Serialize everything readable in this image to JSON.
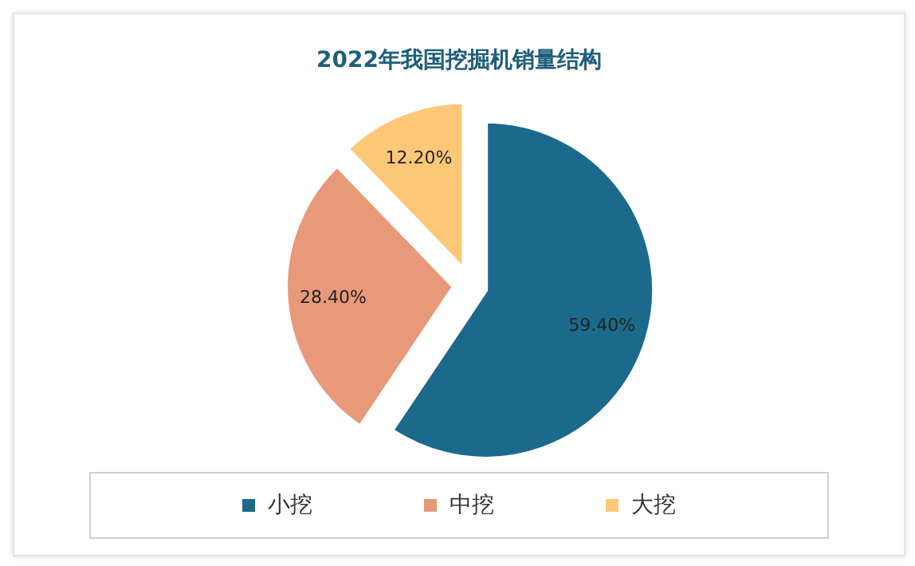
{
  "chart_data": {
    "type": "pie",
    "title": "2022年我国挖掘机销量结构",
    "categories": [
      "小挖",
      "中挖",
      "大挖"
    ],
    "values": [
      59.4,
      28.4,
      12.2
    ],
    "value_labels": [
      "59.40%",
      "28.40%",
      "12.20%"
    ],
    "colors": [
      "#1b6a8c",
      "#e8997a",
      "#fcc878"
    ],
    "legend": "bottom"
  }
}
